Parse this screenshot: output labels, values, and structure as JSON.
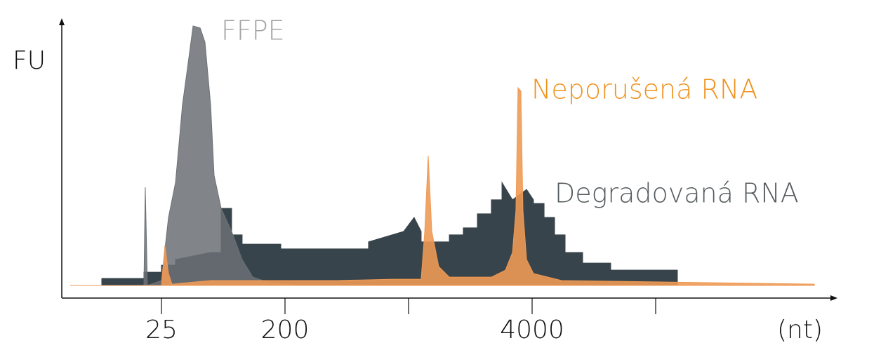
{
  "chart_data": {
    "type": "area",
    "y_label": "FU",
    "x_label": "(nt)",
    "xlim": [
      0.2,
      6.45
    ],
    "ylim": [
      0,
      100
    ],
    "xticks": [
      {
        "value": 1,
        "label": "25"
      },
      {
        "value": 2,
        "label": "200"
      },
      {
        "value": 3,
        "label": null
      },
      {
        "value": 4,
        "label": "4000"
      },
      {
        "value": 5,
        "label": null
      }
    ],
    "series": [
      {
        "name": "Degradovaná RNA",
        "color": "#38444b",
        "x": [
          0.261,
          0.517,
          0.517,
          0.858,
          0.858,
          1.0,
          1.0,
          1.114,
          1.114,
          1.398,
          1.483,
          1.483,
          1.568,
          1.568,
          1.653,
          1.653,
          1.966,
          1.966,
          2.08,
          2.08,
          2.676,
          2.676,
          2.96,
          3.045,
          3.102,
          3.102,
          3.33,
          3.33,
          3.443,
          3.443,
          3.557,
          3.557,
          3.67,
          3.67,
          3.756,
          3.756,
          3.841,
          3.955,
          4.011,
          4.011,
          4.097,
          4.097,
          4.182,
          4.182,
          4.267,
          4.267,
          4.409,
          4.409,
          4.636,
          4.636,
          5.176,
          5.176,
          6.284
        ],
        "values": [
          0,
          0,
          2.7,
          2.7,
          5.1,
          5.1,
          7.8,
          7.8,
          10,
          12.7,
          12.7,
          29.7,
          29.7,
          19.5,
          19.5,
          15.9,
          15.9,
          14.1,
          14.1,
          14.1,
          14.1,
          16.8,
          20.8,
          26.2,
          20.8,
          16.8,
          16.8,
          19.5,
          19.5,
          22.2,
          22.2,
          27.6,
          27.6,
          33,
          33,
          39.7,
          33,
          37,
          33,
          31.6,
          31.6,
          26.2,
          26.2,
          19.5,
          19.5,
          12.7,
          12.7,
          8.6,
          8.6,
          5.9,
          5.9,
          0,
          0
        ]
      },
      {
        "name": "FFPE",
        "color": "#6b7074",
        "x": [
          0.261,
          0.858,
          0.869,
          0.886,
          1.0,
          1.057,
          1.114,
          1.17,
          1.216,
          1.256,
          1.313,
          1.352,
          1.398,
          1.426,
          1.483,
          1.568,
          1.653,
          1.739,
          1.852,
          2.08,
          6.284
        ],
        "values": [
          0,
          0,
          37.8,
          0,
          1.9,
          26.2,
          39.7,
          69.5,
          85.7,
          100,
          99.2,
          93.8,
          69.5,
          42.4,
          29.7,
          20.8,
          10,
          3.2,
          1.4,
          0,
          0
        ]
      },
      {
        "name": "Neporušená RNA",
        "color": "#ee9a55",
        "x": [
          0.261,
          1.0,
          1.028,
          1.057,
          1.085,
          1.398,
          1.568,
          2.42,
          2.875,
          3.102,
          3.131,
          3.159,
          3.188,
          3.244,
          3.33,
          3.67,
          3.784,
          3.841,
          3.869,
          3.886,
          3.909,
          3.926,
          3.955,
          4.011,
          4.239,
          6.284
        ],
        "values": [
          0,
          0,
          15.4,
          4.6,
          0.5,
          1.9,
          1.9,
          1.9,
          2.4,
          2.4,
          20.8,
          50,
          20.8,
          7.3,
          3.2,
          3.2,
          5.9,
          12.7,
          28.9,
          76.2,
          74.9,
          28.9,
          10,
          4.6,
          1.9,
          0.5
        ]
      }
    ]
  }
}
